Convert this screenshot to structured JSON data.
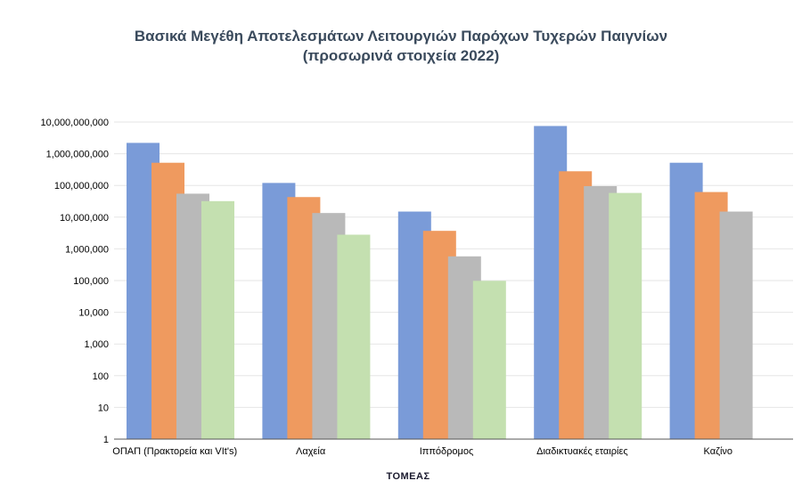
{
  "chart_data": {
    "type": "bar",
    "title": "Βασικά Μεγέθη Αποτελεσμάτων Λειτουργιών Παρόχων Τυχερών Παιγνίων",
    "subtitle": "(προσωρινά στοιχεία 2022)",
    "xlabel": "ΤΟΜΕΑΣ",
    "ylabel": "",
    "yscale": "log",
    "ylim": [
      1,
      10000000000
    ],
    "yticks": [
      "1",
      "10",
      "100",
      "1,000",
      "10,000",
      "100,000",
      "1,000,000",
      "10,000,000",
      "100,000,000",
      "1,000,000,000",
      "10,000,000,000"
    ],
    "grid": true,
    "legend": "none",
    "categories": [
      "ΟΠΑΠ (Πρακτορεία και VIt's)",
      "Λαχεία",
      "Ιππόδρομος",
      "Διαδικτυακές εταιρίες",
      "Καζίνο"
    ],
    "series": [
      {
        "values": [
          2200000000,
          120000000,
          15000000,
          7500000000,
          520000000
        ],
        "color": "#7a9bd8"
      },
      {
        "values": [
          520000000,
          43000000,
          3700000,
          280000000,
          62000000
        ],
        "color": "#ef9a5f"
      },
      {
        "values": [
          55000000,
          13500000,
          580000,
          95000000,
          15000000
        ],
        "color": "#b9b9b9"
      },
      {
        "values": [
          32000000,
          2800000,
          98000,
          58000000,
          null
        ],
        "color": "#c4e0b0"
      }
    ]
  }
}
